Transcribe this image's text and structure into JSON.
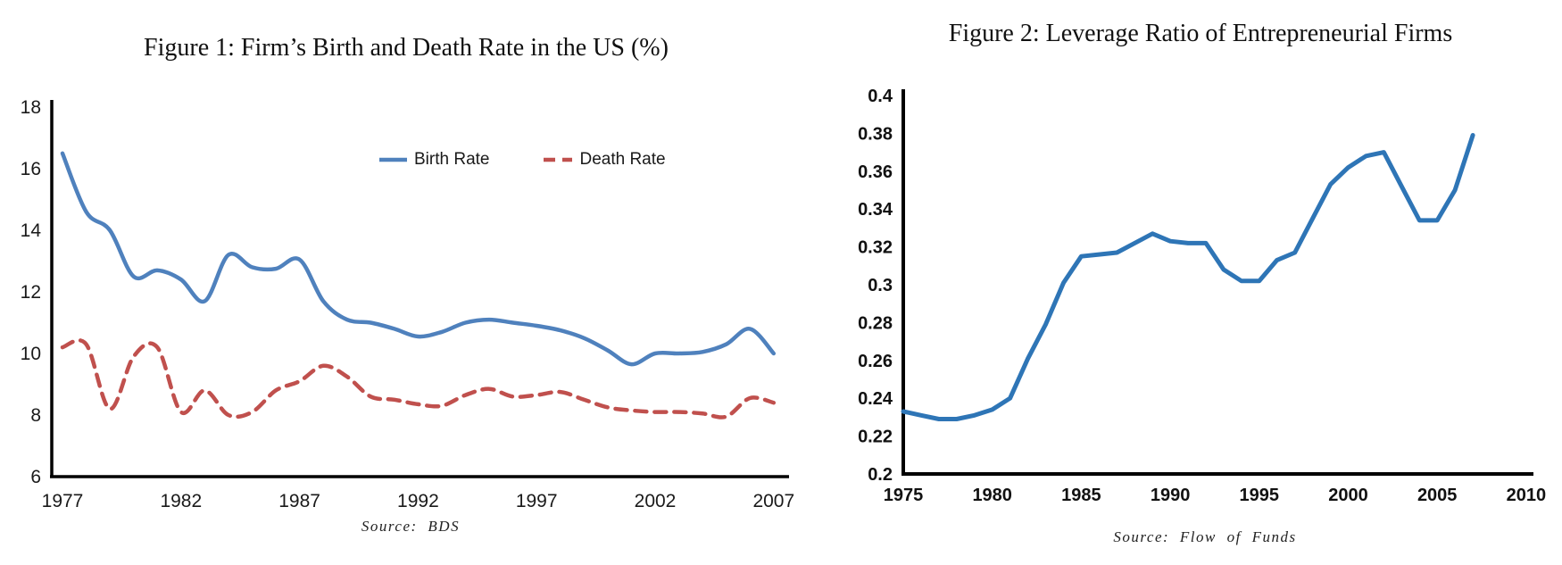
{
  "chart_data": [
    {
      "type": "line",
      "title": "Figure 1: Firm’s Birth and Death Rate in the US (%)",
      "source": "Source: BDS",
      "xlabel": "",
      "ylabel": "",
      "xlim": [
        1977,
        2007
      ],
      "ylim": [
        6,
        18
      ],
      "grid": false,
      "smooth": true,
      "legend_position": "inside-top-center",
      "xticks": [
        1977,
        1982,
        1987,
        1992,
        1997,
        2002,
        2007
      ],
      "yticks": [
        6,
        8,
        10,
        12,
        14,
        16,
        18
      ],
      "x": [
        1977,
        1978,
        1979,
        1980,
        1981,
        1982,
        1983,
        1984,
        1985,
        1986,
        1987,
        1988,
        1989,
        1990,
        1991,
        1992,
        1993,
        1994,
        1995,
        1996,
        1997,
        1998,
        1999,
        2000,
        2001,
        2002,
        2003,
        2004,
        2005,
        2006,
        2007
      ],
      "series": [
        {
          "name": "Birth Rate",
          "color": "#4f81bd",
          "line_style": "solid",
          "values": [
            16.5,
            14.6,
            14.0,
            12.5,
            12.7,
            12.4,
            11.7,
            13.2,
            12.8,
            12.75,
            13.05,
            11.7,
            11.1,
            11.0,
            10.8,
            10.55,
            10.7,
            11.0,
            11.1,
            11.0,
            10.9,
            10.75,
            10.5,
            10.1,
            9.65,
            10.0,
            10.0,
            10.05,
            10.3,
            10.8,
            10.0
          ]
        },
        {
          "name": "Death Rate",
          "color": "#c0504d",
          "line_style": "dashed",
          "values": [
            10.2,
            10.3,
            8.2,
            9.9,
            10.2,
            8.1,
            8.8,
            8.0,
            8.1,
            8.8,
            9.1,
            9.6,
            9.25,
            8.6,
            8.5,
            8.35,
            8.3,
            8.65,
            8.85,
            8.6,
            8.65,
            8.75,
            8.5,
            8.25,
            8.15,
            8.1,
            8.1,
            8.05,
            7.95,
            8.55,
            8.4
          ]
        }
      ]
    },
    {
      "type": "line",
      "title": "Figure 2: Leverage Ratio of Entrepreneurial Firms",
      "source": "Source: Flow of Funds",
      "xlabel": "",
      "ylabel": "",
      "xlim": [
        1975,
        2010
      ],
      "ylim": [
        0.2,
        0.4
      ],
      "grid": false,
      "smooth": false,
      "legend_position": "none",
      "xticks": [
        1975,
        1980,
        1985,
        1990,
        1995,
        2000,
        2005,
        2010
      ],
      "yticks": [
        0.2,
        0.22,
        0.24,
        0.26,
        0.28,
        0.3,
        0.32,
        0.34,
        0.36,
        0.38,
        0.4
      ],
      "x": [
        1975,
        1976,
        1977,
        1978,
        1979,
        1980,
        1981,
        1982,
        1983,
        1984,
        1985,
        1986,
        1987,
        1988,
        1989,
        1990,
        1991,
        1992,
        1993,
        1994,
        1995,
        1996,
        1997,
        1998,
        1999,
        2000,
        2001,
        2002,
        2003,
        2004,
        2005,
        2006,
        2007
      ],
      "series": [
        {
          "name": "Leverage Ratio",
          "color": "#2e75b6",
          "line_style": "solid",
          "values": [
            0.233,
            0.231,
            0.229,
            0.229,
            0.231,
            0.234,
            0.24,
            0.261,
            0.279,
            0.301,
            0.315,
            0.316,
            0.317,
            0.322,
            0.327,
            0.323,
            0.322,
            0.322,
            0.308,
            0.302,
            0.302,
            0.313,
            0.317,
            0.335,
            0.353,
            0.362,
            0.368,
            0.37,
            0.352,
            0.334,
            0.334,
            0.35,
            0.379
          ]
        }
      ]
    }
  ]
}
